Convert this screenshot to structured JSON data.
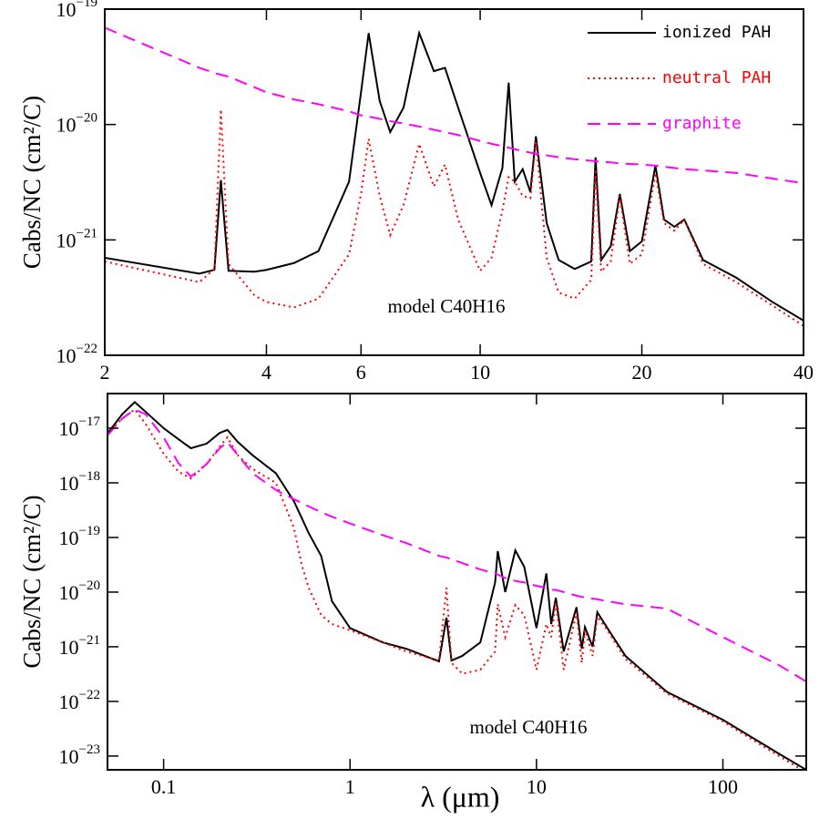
{
  "chart_data": [
    {
      "type": "line",
      "xscale": "log",
      "yscale": "log",
      "y_label": "Cabs/NC (cm²/C)",
      "annotation": "model C40H16",
      "legend": "upper right",
      "xlim": [
        2,
        40
      ],
      "ylim": [
        1e-22,
        1e-19
      ],
      "xticks": [
        2,
        4,
        6,
        10,
        20,
        40
      ],
      "yticks": [
        {
          "value": 1e-19,
          "label": "10−19"
        },
        {
          "value": 1e-20,
          "label": "10−20"
        },
        {
          "value": 1e-21,
          "label": "10−21"
        },
        {
          "value": 1e-22,
          "label": "10−22"
        }
      ],
      "x": [
        2,
        3,
        3.2,
        3.29,
        3.4,
        3.8,
        4,
        4.5,
        5,
        5.7,
        6.0,
        6.2,
        6.5,
        6.8,
        7.2,
        7.7,
        8.2,
        8.6,
        9.1,
        10,
        10.5,
        11,
        11.3,
        11.6,
        12,
        12.4,
        12.7,
        13.3,
        14,
        15,
        16.1,
        16.4,
        16.8,
        17.5,
        18.2,
        19,
        20,
        21.2,
        22,
        23,
        24,
        26,
        30,
        35,
        40
      ],
      "series": [
        {
          "name": "ionized PAH",
          "color": "#000000",
          "style": "solid",
          "values": [
            7e-22,
            5.1e-22,
            5.5e-22,
            3.3e-21,
            5.4e-22,
            5.3e-22,
            5.5e-22,
            6.3e-22,
            8e-22,
            3.2e-21,
            1.9e-20,
            6.2e-20,
            1.6e-20,
            8.6e-21,
            1.4e-20,
            6.2e-20,
            2.9e-20,
            3.1e-20,
            1.4e-20,
            3.8e-21,
            2e-21,
            4.2e-21,
            2.3e-20,
            3.2e-21,
            4.1e-21,
            2.6e-21,
            7.9e-21,
            1.4e-21,
            6.7e-22,
            5.6e-22,
            6.5e-22,
            5.2e-21,
            6.7e-22,
            8.8e-22,
            2.5e-21,
            8e-22,
            9.7e-22,
            4.4e-21,
            1.5e-21,
            1.3e-21,
            1.5e-21,
            6.7e-22,
            4.7e-22,
            2.9e-22,
            2e-22
          ]
        },
        {
          "name": "neutral PAH",
          "color": "#ff0000",
          "style": "dotted",
          "values": [
            6.5e-22,
            4.3e-22,
            5.6e-22,
            1.35e-20,
            6.2e-22,
            3.3e-22,
            2.9e-22,
            2.6e-22,
            3.1e-22,
            7.5e-22,
            2.5e-21,
            7.5e-21,
            2.4e-21,
            1.1e-21,
            2e-21,
            6.8e-21,
            2.9e-21,
            4.5e-21,
            1.5e-21,
            5.4e-22,
            7e-22,
            1.8e-21,
            3.5e-21,
            3.2e-21,
            2.4e-21,
            2.3e-21,
            7.2e-21,
            7e-22,
            3.5e-22,
            3.1e-22,
            4.5e-22,
            4.1e-21,
            5.3e-22,
            6.5e-22,
            2.4e-21,
            6.2e-22,
            7.5e-22,
            3.8e-21,
            1.4e-21,
            1.2e-21,
            1.5e-21,
            6.2e-22,
            4.3e-22,
            2.7e-22,
            1.8e-22
          ]
        },
        {
          "name": "graphite",
          "color": "#ff00ff",
          "style": "dashed",
          "values": [
            6.9e-20,
            3.1e-20,
            2.8e-20,
            2.7e-20,
            2.6e-20,
            2.1e-20,
            1.9e-20,
            1.65e-20,
            1.5e-20,
            1.3e-20,
            1.2e-20,
            1.17e-20,
            1.12e-20,
            1.07e-20,
            1.02e-20,
            9.6e-21,
            9e-21,
            8.6e-21,
            8.1e-21,
            7.2e-21,
            6.8e-21,
            6.5e-21,
            6.3e-21,
            6.1e-21,
            5.9e-21,
            5.7e-21,
            5.6e-21,
            5.4e-21,
            5.2e-21,
            5e-21,
            4.85e-21,
            4.8e-21,
            4.75e-21,
            4.7e-21,
            4.6e-21,
            4.55e-21,
            4.5e-21,
            4.4e-21,
            4.3e-21,
            4.2e-21,
            4.1e-21,
            4e-21,
            3.8e-21,
            3.4e-21,
            3.1e-21
          ]
        }
      ]
    },
    {
      "type": "line",
      "xscale": "log",
      "yscale": "log",
      "x_label": "λ (μm)",
      "y_label": "Cabs/NC (cm²/C)",
      "annotation": "model C40H16",
      "xlim": [
        0.05,
        280
      ],
      "ylim": [
        5.6e-24,
        4.3e-17
      ],
      "xticks": [
        0.1,
        1,
        10,
        100
      ],
      "yticks": [
        {
          "value": 1e-17,
          "label": "10−17"
        },
        {
          "value": 1e-18,
          "label": "10−18"
        },
        {
          "value": 1e-19,
          "label": "10−19"
        },
        {
          "value": 1e-20,
          "label": "10−20"
        },
        {
          "value": 1e-21,
          "label": "10−21"
        },
        {
          "value": 1e-22,
          "label": "10−22"
        },
        {
          "value": 1e-23,
          "label": "10−23"
        }
      ],
      "x": [
        0.05,
        0.06,
        0.07,
        0.08,
        0.1,
        0.12,
        0.14,
        0.17,
        0.2,
        0.22,
        0.25,
        0.3,
        0.4,
        0.5,
        0.55,
        0.6,
        0.7,
        0.8,
        1,
        1.5,
        2,
        3,
        3.29,
        3.5,
        4,
        5,
        6,
        6.2,
        6.8,
        7.7,
        8.6,
        10,
        11.3,
        12,
        12.7,
        14,
        16.4,
        17.5,
        18.2,
        20,
        21.2,
        24,
        30,
        50,
        100,
        200,
        280
      ],
      "series": [
        {
          "color": "#000000",
          "style": "solid",
          "values": [
            8e-18,
            1.8e-17,
            3e-17,
            2e-17,
            1e-17,
            6.3e-18,
            4.3e-18,
            5.2e-18,
            8.2e-18,
            9.3e-18,
            5.6e-18,
            3.2e-18,
            1.5e-18,
            4.6e-19,
            2.3e-19,
            1.2e-19,
            4.6e-20,
            6.8e-21,
            2.2e-21,
            1.2e-21,
            9.2e-22,
            5.4e-22,
            3.4e-21,
            5.6e-22,
            6.8e-22,
            1.2e-21,
            1.5e-20,
            5.6e-20,
            1e-20,
            5.8e-20,
            2.9e-20,
            2.2e-21,
            2.2e-20,
            2.6e-21,
            7.9e-21,
            8.2e-22,
            5.3e-21,
            9.2e-22,
            2.3e-21,
            1e-21,
            4.3e-21,
            2.2e-21,
            6.8e-22,
            1.5e-22,
            4.6e-23,
            1.1e-23,
            5.6e-24
          ]
        },
        {
          "color": "#ff0000",
          "style": "dotted",
          "values": [
            8e-18,
            1.5e-17,
            2.2e-17,
            1.2e-17,
            3.4e-18,
            1.6e-18,
            1.2e-18,
            2.2e-18,
            4.6e-18,
            6.8e-18,
            3.2e-18,
            1.8e-18,
            1e-18,
            1.5e-19,
            3.2e-20,
            1.2e-20,
            3.8e-21,
            2.6e-21,
            2e-21,
            1.2e-21,
            8.2e-22,
            5.6e-22,
            1.2e-20,
            5.1e-22,
            3.2e-22,
            3.8e-22,
            8.2e-22,
            6e-21,
            1.5e-21,
            5.8e-21,
            3.8e-21,
            3.8e-22,
            2.6e-21,
            1.5e-21,
            6.8e-21,
            3.8e-22,
            4.3e-21,
            5.1e-22,
            2e-21,
            6.8e-22,
            3.6e-21,
            2e-21,
            6e-22,
            1.4e-22,
            4.3e-23,
            1e-23,
            5e-24
          ]
        },
        {
          "color": "#ff00ff",
          "style": "dashed",
          "values": [
            7.4e-18,
            1.5e-17,
            2.2e-17,
            1.8e-17,
            6.8e-18,
            2.3e-18,
            1.3e-18,
            2.2e-18,
            4.3e-18,
            5.6e-18,
            3.2e-18,
            1.5e-18,
            7.4e-19,
            5e-19,
            4.3e-19,
            3.7e-19,
            2.9e-19,
            2.4e-19,
            1.8e-19,
            1.1e-19,
            7.9e-20,
            4.6e-20,
            4.3e-20,
            4e-20,
            3.4e-20,
            2.6e-20,
            2.2e-20,
            2.1e-20,
            1.8e-20,
            1.6e-20,
            1.5e-20,
            1.3e-20,
            1.2e-20,
            1.1e-20,
            1.1e-20,
            1e-20,
            8.6e-21,
            8.2e-21,
            7.9e-21,
            7.6e-21,
            7.4e-21,
            6.8e-21,
            6e-21,
            5e-21,
            1.5e-21,
            4.6e-22,
            2.3e-22
          ]
        }
      ]
    }
  ]
}
